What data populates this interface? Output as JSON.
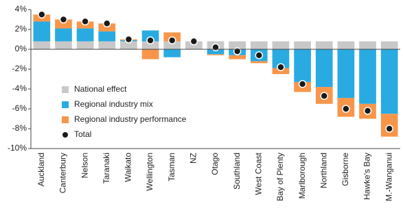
{
  "chart_data": {
    "type": "bar",
    "stacked": true,
    "categories": [
      "Auckland",
      "Canterbury",
      "Nelson",
      "Taranaki",
      "Waikato",
      "Wellington",
      "Tasman",
      "NZ",
      "Otago",
      "Southland",
      "West Coast",
      "Bay of Plenty",
      "Marlborough",
      "Northland",
      "Gisborne",
      "Hawke's Bay",
      "M.-Wanganui"
    ],
    "series": [
      {
        "name": "National effect",
        "color": "#c8c8c8",
        "values": [
          0.8,
          0.8,
          0.8,
          0.8,
          0.8,
          0.8,
          0.8,
          0.8,
          0.8,
          0.8,
          0.8,
          0.8,
          0.8,
          0.8,
          0.8,
          0.8,
          0.8
        ]
      },
      {
        "name": "Regional industry mix",
        "color": "#29abe2",
        "values": [
          2.0,
          1.3,
          1.3,
          1.0,
          0.1,
          1.1,
          -0.8,
          0,
          -0.5,
          -0.6,
          -1.2,
          -1.9,
          -3.3,
          -3.8,
          -4.9,
          -5.5,
          -6.5
        ]
      },
      {
        "name": "Regional industry performance",
        "color": "#f7964a",
        "values": [
          0.7,
          0.9,
          0.7,
          0.8,
          0.1,
          -1.0,
          0.9,
          0,
          -0.1,
          -0.4,
          -0.2,
          -0.6,
          -1.0,
          -1.7,
          -1.9,
          -1.5,
          -2.3
        ]
      },
      {
        "name": "Total",
        "color": "#1a1a1a",
        "marker": "dot",
        "values": [
          3.5,
          3.0,
          2.8,
          2.6,
          1.0,
          0.9,
          0.9,
          0.8,
          0.2,
          -0.2,
          -0.6,
          -1.8,
          -3.5,
          -4.7,
          -6.0,
          -6.2,
          -8.0
        ]
      }
    ],
    "ylim": [
      -10,
      4
    ],
    "yticks": [
      {
        "value": -10,
        "label": "-10%"
      },
      {
        "value": -8,
        "label": "-8%"
      },
      {
        "value": -6,
        "label": "-6%"
      },
      {
        "value": -4,
        "label": "-4%"
      },
      {
        "value": -2,
        "label": "-2%"
      },
      {
        "value": 0,
        "label": "0%"
      },
      {
        "value": 2,
        "label": "2%"
      },
      {
        "value": 4,
        "label": "4%"
      }
    ],
    "grid": false,
    "legend": "lower-left"
  }
}
